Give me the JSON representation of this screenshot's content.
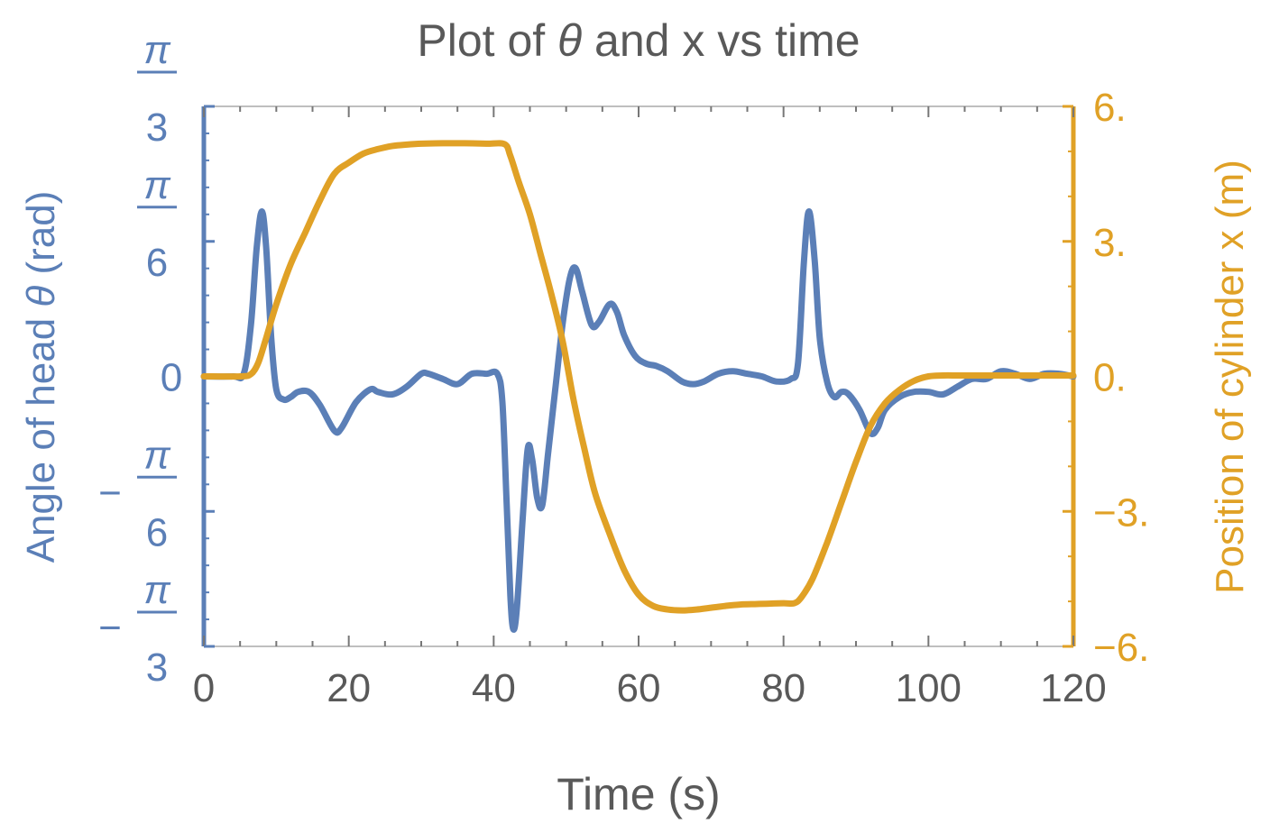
{
  "chart_data": {
    "type": "line",
    "title_parts": [
      "Plot of ",
      "θ",
      " and x vs time"
    ],
    "xlabel": "Time (s)",
    "ylabel_left_parts": [
      "Angle of head ",
      "θ",
      " (rad)"
    ],
    "ylabel_right": "Position of cylinder x (m)",
    "xlim": [
      0,
      120
    ],
    "x_ticks": [
      0,
      20,
      40,
      60,
      80,
      100,
      120
    ],
    "x_tick_labels": [
      "0",
      "20",
      "40",
      "60",
      "80",
      "100",
      "120"
    ],
    "ylim_left": [
      -1.0472,
      1.0472
    ],
    "left_ticks": [
      {
        "value": 1.0472,
        "sign": "",
        "numerator": "π",
        "denominator": "3"
      },
      {
        "value": 0.5236,
        "sign": "",
        "numerator": "π",
        "denominator": "6"
      },
      {
        "value": 0,
        "sign": "",
        "numerator": "0",
        "denominator": ""
      },
      {
        "value": -0.5236,
        "sign": "−",
        "numerator": "π",
        "denominator": "6"
      },
      {
        "value": -1.0472,
        "sign": "−",
        "numerator": "π",
        "denominator": "3"
      }
    ],
    "ylim_right": [
      -6,
      6
    ],
    "right_ticks": [
      6,
      3,
      0,
      -3,
      -6
    ],
    "right_tick_labels": [
      "6.",
      "3.",
      "0.",
      "−3.",
      "−6."
    ],
    "grid": false,
    "colors": {
      "theta": "#5b7fb7",
      "x": "#e0a126",
      "text": "#595959"
    },
    "series": [
      {
        "key": "theta",
        "axis": "left",
        "x": [
          0,
          4,
          5.5,
          6.5,
          7.3,
          8,
          8.6,
          9.3,
          10,
          11,
          12,
          13,
          14.5,
          16,
          18,
          19,
          21,
          23,
          24,
          26,
          28,
          30,
          31,
          33,
          35,
          37,
          39,
          40.5,
          41.2,
          41.8,
          42.3,
          42.7,
          43.2,
          44,
          44.7,
          45.3,
          46,
          46.7,
          47.5,
          48.5,
          49.5,
          50.5,
          51.3,
          52.2,
          53.5,
          54.5,
          56,
          57,
          58,
          59.5,
          61,
          62.5,
          64,
          66,
          67.5,
          69,
          71,
          73,
          75,
          77,
          79,
          81,
          82,
          82.8,
          83.5,
          84.3,
          85,
          86,
          87,
          88,
          89,
          90.5,
          92,
          93,
          94,
          96,
          98,
          100,
          102,
          104,
          106,
          108,
          110,
          112,
          114,
          116,
          118,
          120
        ],
        "y": [
          0,
          0,
          0.01,
          0.2,
          0.5,
          0.64,
          0.5,
          0.15,
          -0.05,
          -0.09,
          -0.08,
          -0.06,
          -0.06,
          -0.11,
          -0.21,
          -0.2,
          -0.1,
          -0.05,
          -0.06,
          -0.07,
          -0.04,
          0.01,
          0.01,
          -0.01,
          -0.03,
          0.01,
          0.01,
          0.01,
          -0.1,
          -0.5,
          -0.85,
          -0.98,
          -0.9,
          -0.55,
          -0.28,
          -0.32,
          -0.47,
          -0.5,
          -0.3,
          -0.05,
          0.2,
          0.38,
          0.42,
          0.33,
          0.2,
          0.21,
          0.28,
          0.25,
          0.16,
          0.08,
          0.05,
          0.04,
          0.02,
          -0.02,
          -0.03,
          -0.02,
          0.01,
          0.02,
          0.01,
          0.0,
          -0.02,
          -0.01,
          0.05,
          0.44,
          0.64,
          0.45,
          0.15,
          -0.02,
          -0.08,
          -0.06,
          -0.07,
          -0.13,
          -0.22,
          -0.2,
          -0.13,
          -0.08,
          -0.06,
          -0.06,
          -0.07,
          -0.04,
          -0.01,
          -0.01,
          0.02,
          0.01,
          -0.01,
          0.01,
          0.01,
          0
        ]
      },
      {
        "key": "x",
        "axis": "right",
        "x": [
          0,
          5,
          6.5,
          7.5,
          8.5,
          10,
          12,
          14,
          16,
          18,
          20,
          22,
          24,
          26,
          28,
          30,
          33,
          36,
          39,
          41.5,
          42.3,
          43.5,
          45,
          46.5,
          48,
          49.5,
          51,
          52.5,
          54,
          56,
          58,
          60,
          62,
          64,
          66,
          68,
          70,
          72,
          74,
          76,
          78,
          80,
          81.5,
          82.5,
          84,
          86,
          88,
          90,
          92,
          94,
          96,
          98,
          100,
          102,
          104,
          106,
          108,
          110,
          114,
          118,
          120
        ],
        "y": [
          0,
          0,
          0.05,
          0.3,
          0.8,
          1.6,
          2.5,
          3.2,
          3.9,
          4.5,
          4.75,
          4.95,
          5.05,
          5.12,
          5.15,
          5.17,
          5.18,
          5.18,
          5.17,
          5.16,
          4.9,
          4.3,
          3.6,
          2.7,
          1.8,
          0.8,
          -0.5,
          -1.6,
          -2.6,
          -3.5,
          -4.3,
          -4.85,
          -5.1,
          -5.18,
          -5.2,
          -5.18,
          -5.14,
          -5.1,
          -5.07,
          -5.06,
          -5.05,
          -5.04,
          -5.04,
          -4.9,
          -4.5,
          -3.7,
          -2.8,
          -1.9,
          -1.1,
          -0.6,
          -0.3,
          -0.1,
          0.0,
          0.02,
          0.02,
          0.02,
          0.02,
          0.02,
          0.02,
          0.02,
          0.02
        ]
      }
    ]
  }
}
